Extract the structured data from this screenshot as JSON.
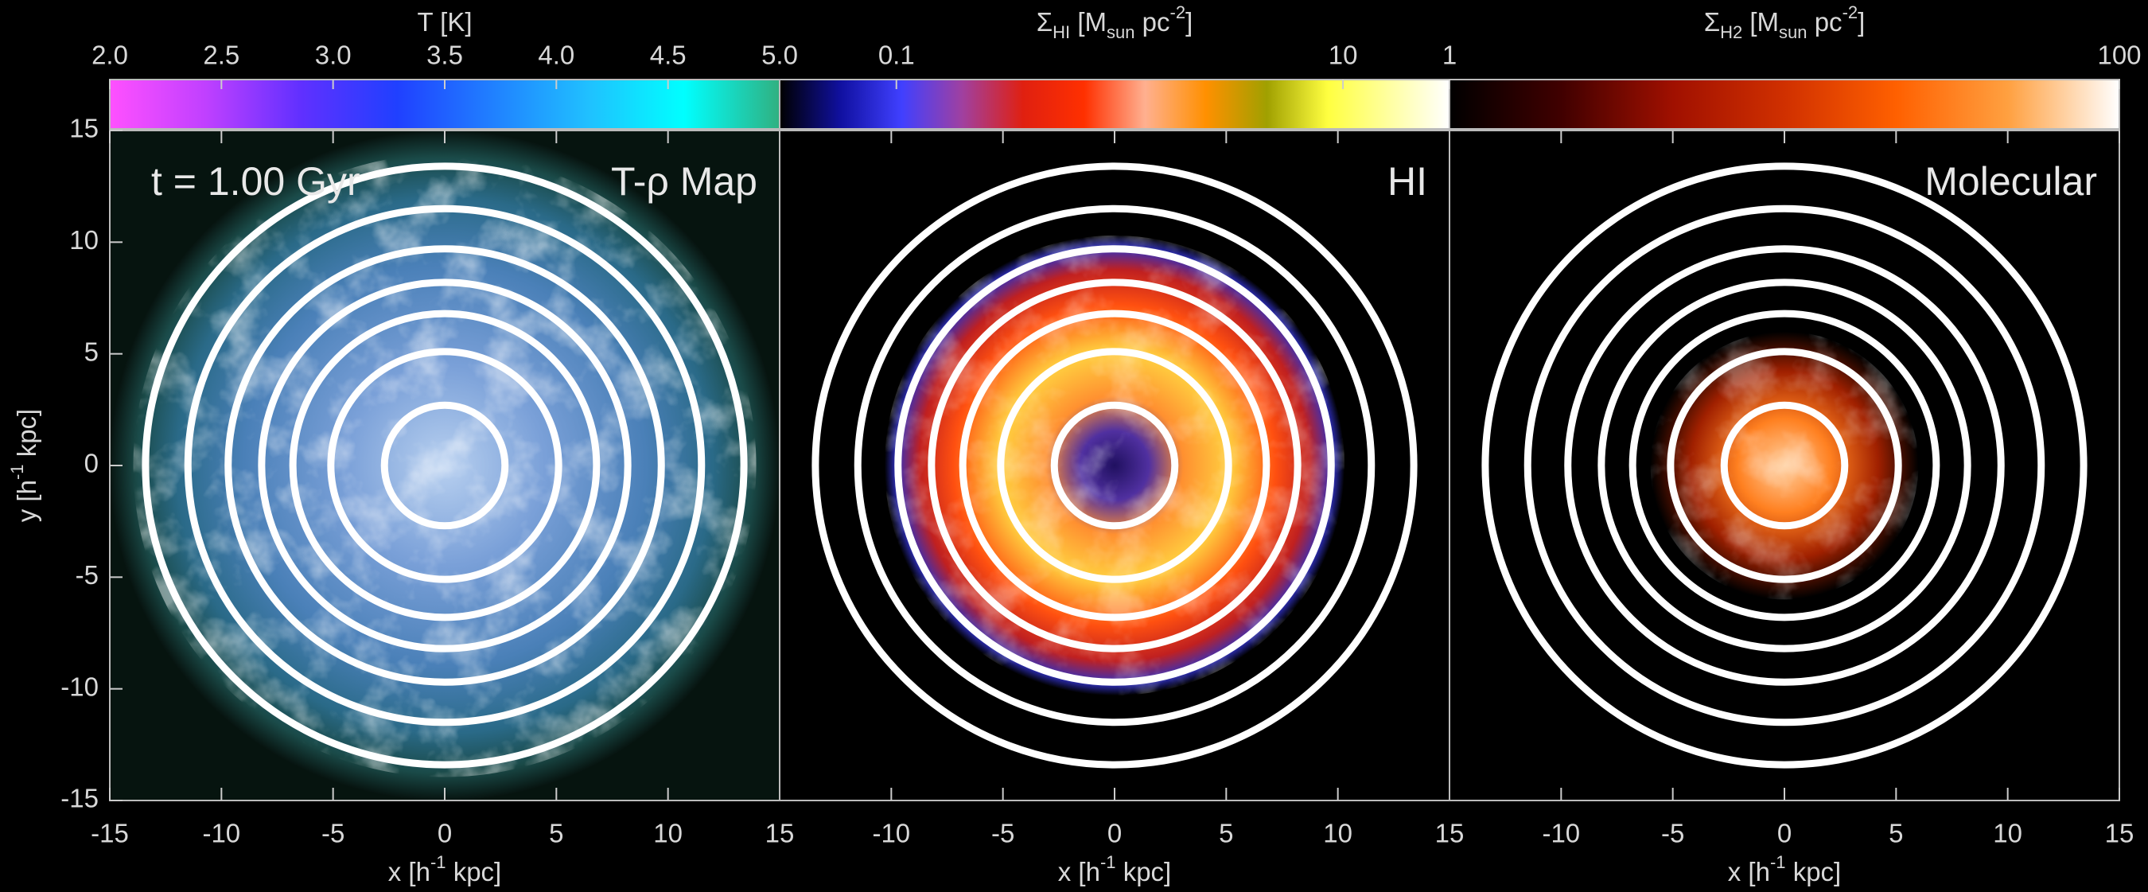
{
  "chart_data": [
    {
      "type": "image",
      "annotations": [
        "t = 1.00 Gyr",
        "T-ρ Map"
      ],
      "colorbar": {
        "label": [
          {
            "text": "T [K]"
          }
        ],
        "lim": [
          2,
          5
        ],
        "scale": "linear",
        "ticks": [
          {
            "value": 2,
            "label": "2.0"
          },
          2.5,
          {
            "value": 3,
            "label": "3.0"
          },
          3.5,
          {
            "value": 4,
            "label": "4.0"
          },
          4.5,
          {
            "value": 5,
            "label": "5.0"
          }
        ],
        "colormap": [
          "#ff50ff",
          "#c040ff",
          "#6030ff",
          "#2040ff",
          "#2080ff",
          "#20c0ff",
          "#00ffff",
          "#30b080"
        ]
      },
      "xlabel": [
        {
          "text": "x [h"
        },
        {
          "text": "-1",
          "sup": true
        },
        {
          "text": " kpc]"
        }
      ],
      "ylabel": [
        {
          "text": "y [h"
        },
        {
          "text": "-1",
          "sup": true
        },
        {
          "text": " kpc]"
        }
      ],
      "xlim": [
        -15,
        15
      ],
      "ylim": [
        -15,
        15
      ],
      "xticks": [
        -15,
        -10,
        -5,
        0,
        5,
        10,
        15
      ],
      "yticks": [
        -15,
        -10,
        -5,
        0,
        5,
        10,
        15
      ],
      "rings": {
        "radii": [
          2.7,
          5.1,
          6.8,
          8.2,
          9.7,
          11.5,
          13.4
        ],
        "color": "#ffffff"
      }
    },
    {
      "type": "image",
      "annotations": [
        "HI"
      ],
      "colorbar": {
        "label": [
          {
            "text": "Σ"
          },
          {
            "text": "HI",
            "sub": true
          },
          {
            "text": " [M"
          },
          {
            "text": "sun",
            "sub": true
          },
          {
            "text": " pc"
          },
          {
            "text": "-2",
            "sup": true
          },
          {
            "text": "]"
          }
        ],
        "lim": [
          0.03,
          30
        ],
        "scale": "log",
        "ticks": [
          0.1,
          10
        ],
        "colormap": [
          "#000000",
          "#1010a0",
          "#4040ff",
          "#a040a0",
          "#e02010",
          "#ff3000",
          "#ffb090",
          "#ff9000",
          "#a0a000",
          "#ffff40",
          "#ffffa0",
          "#ffffff"
        ]
      },
      "xlabel": [
        {
          "text": "x [h"
        },
        {
          "text": "-1",
          "sup": true
        },
        {
          "text": " kpc]"
        }
      ],
      "xlim": [
        -15,
        15
      ],
      "ylim": [
        -15,
        15
      ],
      "xticks": [
        -10,
        -5,
        0,
        5,
        10,
        15
      ],
      "rings": {
        "radii": [
          2.7,
          5.1,
          6.8,
          8.2,
          9.7,
          11.5,
          13.4
        ],
        "color": "#ffffff"
      }
    },
    {
      "type": "image",
      "annotations": [
        "Molecular"
      ],
      "colorbar": {
        "label": [
          {
            "text": "Σ"
          },
          {
            "text": "H2",
            "sub": true
          },
          {
            "text": " [M"
          },
          {
            "text": "sun",
            "sub": true
          },
          {
            "text": " pc"
          },
          {
            "text": "-2",
            "sup": true
          },
          {
            "text": "]"
          }
        ],
        "lim": [
          1,
          100
        ],
        "scale": "log",
        "ticks": [
          1,
          100
        ],
        "colormap": [
          "#000000",
          "#400000",
          "#a01000",
          "#d03000",
          "#ff6000",
          "#ffa040",
          "#ffffff"
        ]
      },
      "xlabel": [
        {
          "text": "x [h"
        },
        {
          "text": "-1",
          "sup": true
        },
        {
          "text": " kpc]"
        }
      ],
      "xlim": [
        -15,
        15
      ],
      "ylim": [
        -15,
        15
      ],
      "xticks": [
        -10,
        -5,
        0,
        5,
        10,
        15
      ],
      "rings": {
        "radii": [
          2.7,
          5.1,
          6.8,
          8.2,
          9.7,
          11.5,
          13.4
        ],
        "color": "#ffffff"
      }
    }
  ]
}
